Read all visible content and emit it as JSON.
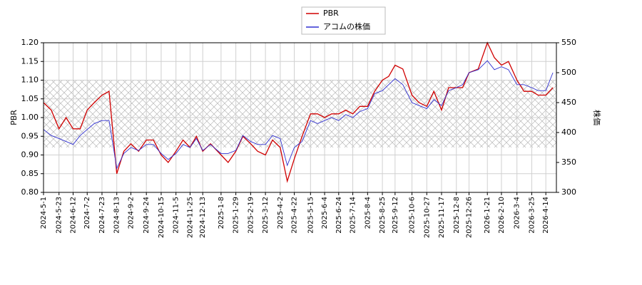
{
  "chart_data": {
    "type": "line",
    "x": [
      "2024-5-1",
      "2024-5-12",
      "2024-5-23",
      "2024-6-2",
      "2024-6-12",
      "2024-6-22",
      "2024-7-2",
      "2024-7-12",
      "2024-7-23",
      "2024-8-2",
      "2024-8-13",
      "2024-8-23",
      "2024-9-2",
      "2024-9-13",
      "2024-9-24",
      "2024-10-4",
      "2024-10-15",
      "2024-10-25",
      "2024-11-5",
      "2024-11-15",
      "2024-11-25",
      "2024-12-4",
      "2024-12-13",
      "2024-12-24",
      "2025-1-8",
      "2025-1-18",
      "2025-1-29",
      "2025-2-8",
      "2025-2-19",
      "2025-3-1",
      "2025-3-12",
      "2025-3-22",
      "2025-4-2",
      "2025-4-12",
      "2025-4-22",
      "2025-5-3",
      "2025-5-15",
      "2025-5-25",
      "2025-6-4",
      "2025-6-14",
      "2025-6-24",
      "2025-7-4",
      "2025-7-14",
      "2025-7-24",
      "2025-8-4",
      "2025-8-14",
      "2025-8-25",
      "2025-9-3",
      "2025-9-12",
      "2025-9-23",
      "2025-10-6",
      "2025-10-16",
      "2025-10-27",
      "2025-11-6",
      "2025-11-17",
      "2025-11-27",
      "2025-12-8",
      "2025-12-17",
      "2025-12-26",
      "2026-1-8",
      "2026-1-21",
      "2026-1-31",
      "2026-2-10",
      "2026-2-20",
      "2026-3-4",
      "2026-3-14",
      "2026-3-25",
      "2026-4-3",
      "2026-4-14",
      "2026-4-24"
    ],
    "xlim": [
      "2024-5-1",
      "2026-4-29"
    ],
    "xticks": [
      "2024-5-1",
      "2024-5-23",
      "2024-6-12",
      "2024-7-2",
      "2024-7-23",
      "2024-8-13",
      "2024-9-2",
      "2024-9-24",
      "2024-10-15",
      "2024-11-5",
      "2024-11-25",
      "2024-12-13",
      "2025-1-8",
      "2025-1-29",
      "2025-2-19",
      "2025-3-12",
      "2025-4-2",
      "2025-4-22",
      "2025-5-15",
      "2025-6-4",
      "2025-6-24",
      "2025-7-14",
      "2025-8-4",
      "2025-8-25",
      "2025-9-12",
      "2025-10-6",
      "2025-10-27",
      "2025-11-17",
      "2025-12-8",
      "2025-12-26",
      "2026-1-21",
      "2026-2-10",
      "2026-3-4",
      "2026-3-25",
      "2026-4-14"
    ],
    "ylabel": "PBR",
    "y2label": "株価",
    "ylim": [
      0.8,
      1.2
    ],
    "yticks": [
      {
        "value": 0.8,
        "label": "0.80"
      },
      {
        "value": 0.85,
        "label": "0.85"
      },
      {
        "value": 0.9,
        "label": "0.90"
      },
      {
        "value": 0.95,
        "label": "0.95"
      },
      {
        "value": 1.0,
        "label": "1.00"
      },
      {
        "value": 1.05,
        "label": "1.05"
      },
      {
        "value": 1.1,
        "label": "1.10"
      },
      {
        "value": 1.15,
        "label": "1.15"
      },
      {
        "value": 1.2,
        "label": "1.20"
      }
    ],
    "y2lim": [
      300,
      550
    ],
    "y2ticks": [
      300,
      350,
      400,
      450,
      500,
      550
    ],
    "band": [
      0.92,
      1.1
    ],
    "grid": true,
    "legend": "top",
    "series": [
      {
        "name": "PBR",
        "color": "#d00000",
        "values": [
          1.04,
          1.02,
          0.97,
          1.0,
          0.97,
          0.97,
          1.02,
          1.04,
          1.06,
          1.07,
          0.85,
          0.91,
          0.93,
          0.91,
          0.94,
          0.94,
          0.9,
          0.88,
          0.91,
          0.94,
          0.92,
          0.95,
          0.91,
          0.93,
          0.9,
          0.88,
          0.91,
          0.95,
          0.93,
          0.91,
          0.9,
          0.94,
          0.92,
          0.83,
          0.89,
          0.95,
          1.01,
          1.01,
          1.0,
          1.01,
          1.01,
          1.02,
          1.01,
          1.03,
          1.03,
          1.07,
          1.1,
          1.11,
          1.14,
          1.13,
          1.06,
          1.04,
          1.03,
          1.07,
          1.02,
          1.08,
          1.08,
          1.08,
          1.12,
          1.13,
          1.2,
          1.16,
          1.14,
          1.15,
          1.1,
          1.07,
          1.07,
          1.06,
          1.06,
          1.08
        ]
      },
      {
        "name": "アコムの株価",
        "color": "#3030d0",
        "axis": "y2",
        "values": [
          405,
          395,
          390,
          385,
          380,
          395,
          405,
          415,
          420,
          420,
          340,
          365,
          375,
          370,
          380,
          380,
          365,
          355,
          365,
          380,
          375,
          390,
          370,
          380,
          365,
          365,
          370,
          395,
          385,
          380,
          380,
          395,
          390,
          345,
          375,
          385,
          420,
          415,
          420,
          425,
          420,
          430,
          425,
          435,
          440,
          465,
          470,
          480,
          490,
          480,
          450,
          445,
          440,
          455,
          445,
          470,
          475,
          480,
          500,
          505,
          520,
          505,
          510,
          505,
          480,
          480,
          475,
          470,
          470,
          500
        ]
      }
    ]
  }
}
